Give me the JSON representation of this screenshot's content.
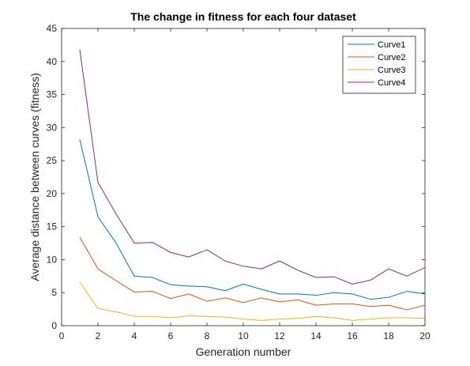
{
  "chart_data": {
    "type": "line",
    "title": "The change in fitness for each four dataset",
    "xlabel": "Generation number",
    "ylabel": "Average distance between curves (fitness)",
    "xlim": [
      0,
      20
    ],
    "ylim": [
      0,
      45
    ],
    "xticks": [
      0,
      2,
      4,
      6,
      8,
      10,
      12,
      14,
      16,
      18,
      20
    ],
    "yticks": [
      0,
      5,
      10,
      15,
      20,
      25,
      30,
      35,
      40,
      45
    ],
    "grid": false,
    "legend_position": "top-right",
    "x": [
      1,
      2,
      3,
      4,
      5,
      6,
      7,
      8,
      9,
      10,
      11,
      12,
      13,
      14,
      15,
      16,
      17,
      18,
      19,
      20
    ],
    "series": [
      {
        "name": "Curve1",
        "color": "#0072BD",
        "values": [
          28.2,
          16.5,
          12.5,
          7.5,
          7.3,
          6.2,
          6.0,
          5.9,
          5.3,
          6.3,
          5.5,
          4.8,
          4.8,
          4.6,
          5.0,
          4.8,
          4.0,
          4.3,
          5.2,
          4.8
        ]
      },
      {
        "name": "Curve2",
        "color": "#D95319",
        "values": [
          13.4,
          8.6,
          6.8,
          5.1,
          5.2,
          4.1,
          4.8,
          3.7,
          4.2,
          3.5,
          4.2,
          3.6,
          3.9,
          3.1,
          3.3,
          3.3,
          2.9,
          3.1,
          2.4,
          3.1
        ]
      },
      {
        "name": "Curve3",
        "color": "#EDB120",
        "values": [
          6.6,
          2.6,
          2.1,
          1.4,
          1.4,
          1.2,
          1.5,
          1.4,
          1.3,
          1.0,
          0.8,
          1.0,
          1.1,
          1.4,
          1.2,
          0.8,
          1.0,
          1.2,
          1.2,
          1.1
        ]
      },
      {
        "name": "Curve4",
        "color": "#7E2F8E",
        "values": [
          41.8,
          21.7,
          16.9,
          12.5,
          12.6,
          11.1,
          10.4,
          11.5,
          9.8,
          9.0,
          8.6,
          9.8,
          8.4,
          7.3,
          7.4,
          6.3,
          6.9,
          8.6,
          7.5,
          8.8
        ]
      }
    ]
  }
}
